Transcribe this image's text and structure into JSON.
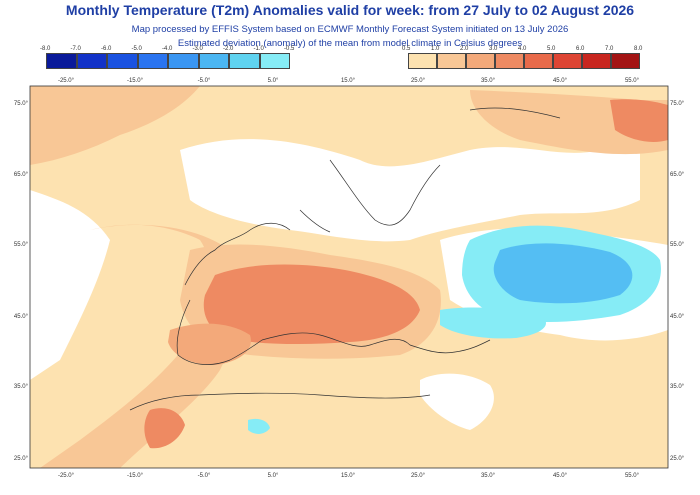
{
  "title": "Monthly Temperature (T2m) Anomalies valid for week: from 27 July to 02 August 2026",
  "subtitle1": "Map processed by EFFIS System based on ECMWF Monthly Forecast System initiated on 13 July 2026",
  "subtitle2": "Estimated deviation (anomaly) of the mean from model climate in Celsius degrees",
  "colorbar_negative": {
    "labels": [
      "-8.0",
      "-7.0",
      "-6.0",
      "-5.0",
      "-4.0",
      "-3.0",
      "-2.0",
      "-1.0",
      "-0.5"
    ],
    "colors": [
      "#0a1a9a",
      "#1232c8",
      "#1a52e0",
      "#2a74f0",
      "#3a96f2",
      "#4bb6f2",
      "#5fd3f0",
      "#86ecf6"
    ]
  },
  "colorbar_positive": {
    "labels": [
      "0.5",
      "1.0",
      "2.0",
      "3.0",
      "4.0",
      "5.0",
      "6.0",
      "7.0",
      "8.0"
    ],
    "colors": [
      "#fde2b0",
      "#f8c796",
      "#f3a97a",
      "#ee8a62",
      "#e86a4a",
      "#de4534",
      "#c8261f",
      "#a31414"
    ]
  },
  "axes": {
    "top_lon": [
      "-25.0°",
      "-15.0°",
      "-5.0°",
      "5.0°",
      "15.0°",
      "25.0°",
      "35.0°",
      "45.0°",
      "55.0°"
    ],
    "bottom_lon": [
      "-25.0°",
      "-15.0°",
      "-5.0°",
      "5.0°",
      "15.0°",
      "25.0°",
      "35.0°",
      "45.0°",
      "55.0°"
    ],
    "left_lat": [
      "75.0°",
      "65.0°",
      "55.0°",
      "45.0°",
      "35.0°",
      "25.0°"
    ],
    "right_lat": [
      "75.0°",
      "65.0°",
      "55.0°",
      "45.0°",
      "35.0°",
      "25.0°"
    ]
  }
}
